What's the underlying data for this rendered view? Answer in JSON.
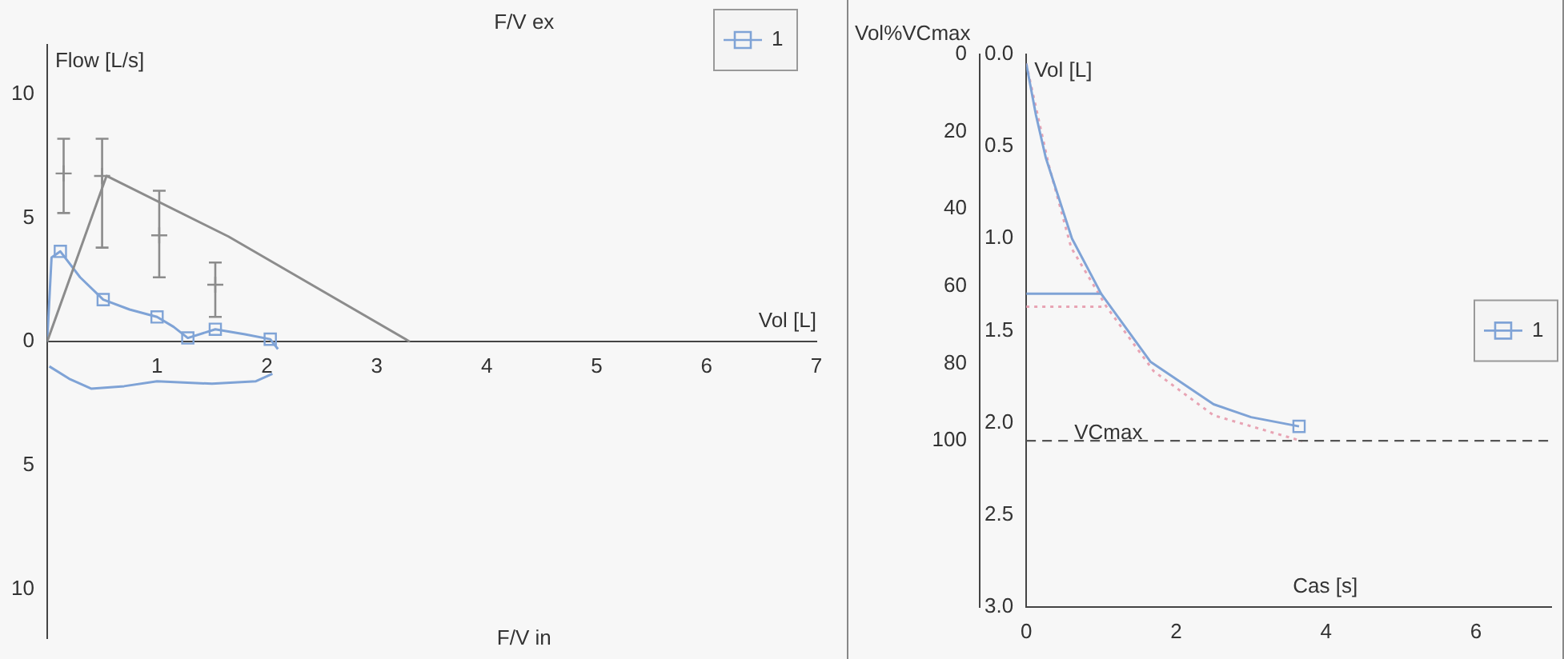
{
  "chart_data": [
    {
      "type": "line",
      "xlabel": "Vol [L]",
      "ylabel": "Flow [L/s]",
      "annotations": [
        "F/V ex",
        "F/V in"
      ],
      "xlim": [
        0,
        7
      ],
      "xticks": [
        1,
        2,
        3,
        4,
        5,
        6,
        7
      ],
      "ylim": [
        -12,
        12
      ],
      "yticks": [
        {
          "value": -10,
          "label": "10"
        },
        {
          "value": -5,
          "label": "5"
        },
        0,
        5,
        10
      ],
      "grid": false,
      "legend": "top right",
      "series": [
        {
          "color": "#8c8c8c",
          "marker": "none",
          "x": [
            0,
            0.54,
            1.65,
            3.3
          ],
          "values": [
            0,
            6.7,
            4.25,
            0
          ]
        },
        {
          "type": "scatter",
          "color": "#8c8c8c",
          "marker": "cross",
          "x": [
            0.15,
            0.5,
            1.02,
            1.53
          ],
          "values": [
            6.8,
            6.7,
            4.3,
            2.3
          ],
          "errors": [
            [
              5.2,
              8.2
            ],
            [
              3.8,
              8.2
            ],
            [
              2.6,
              6.1
            ],
            [
              1.0,
              3.2
            ]
          ]
        },
        {
          "name": "1",
          "color": "#7fa3d6",
          "marker": "none",
          "x": [
            0,
            0.04,
            0.12,
            0.3,
            0.51,
            0.75,
            1.0,
            1.15,
            1.28,
            1.53,
            1.8,
            2.03,
            2.1
          ],
          "values": [
            0,
            3.4,
            3.65,
            2.6,
            1.7,
            1.3,
            1.0,
            0.6,
            0.15,
            0.5,
            0.3,
            0.1,
            -0.3
          ]
        },
        {
          "color": "#7fa3d6",
          "marker": "none",
          "x": [
            0.02,
            0.2,
            0.4,
            0.7,
            1.0,
            1.5,
            1.9,
            2.05
          ],
          "values": [
            -1.0,
            -1.5,
            -1.9,
            -1.8,
            -1.6,
            -1.7,
            -1.6,
            -1.3
          ]
        },
        {
          "type": "scatter",
          "color": "#7fa3d6",
          "marker": "square",
          "x": [
            0.12,
            0.51,
            1.0,
            1.28,
            1.53,
            2.03
          ],
          "values": [
            3.65,
            1.7,
            1.0,
            0.15,
            0.5,
            0.1
          ]
        }
      ]
    },
    {
      "type": "line",
      "xlabel": "Cas [s]",
      "ylabel": "Vol [L]",
      "y2label": "Vol%VCmax",
      "xlim": [
        0,
        7
      ],
      "xticks": [
        0,
        2,
        4,
        6
      ],
      "ylim": [
        3,
        0
      ],
      "yticks": [
        {
          "value": 0,
          "label": "0.0"
        },
        0.5,
        {
          "value": 1,
          "label": "1.0"
        },
        1.5,
        {
          "value": 2,
          "label": "2.0"
        },
        2.5,
        {
          "value": 3,
          "label": "3.0"
        }
      ],
      "y2lim": [
        143,
        0
      ],
      "y2ticks": [
        0,
        20,
        40,
        60,
        80,
        100
      ],
      "grid": false,
      "legend": "right",
      "ref_lines": [
        {
          "axis": "y2",
          "value": 100,
          "label": "VCmax",
          "line_style": "dashed",
          "color": "#555555"
        }
      ],
      "series": [
        {
          "name": "1",
          "color": "#7fa3d6",
          "marker": "none",
          "x": [
            0,
            0.13,
            0.26,
            0.61,
            1.0,
            1.66,
            2.5,
            3.0,
            3.64
          ],
          "values": [
            0.05,
            0.33,
            0.56,
            1.0,
            1.3,
            1.67,
            1.9,
            1.97,
            2.02
          ]
        },
        {
          "color": "#7fa3d6",
          "marker": "none",
          "x": [
            0,
            1.0
          ],
          "values": [
            1.3,
            1.3
          ]
        },
        {
          "type": "scatter",
          "color": "#7fa3d6",
          "marker": "square",
          "x": [
            3.64
          ],
          "values": [
            2.02
          ]
        },
        {
          "color": "#e8a4b4",
          "marker": "none",
          "line_style": "dotted",
          "x": [
            0,
            0.3,
            0.6,
            1.07,
            1.7,
            2.5,
            3.68
          ],
          "values": [
            0.05,
            0.6,
            1.05,
            1.37,
            1.72,
            1.96,
            2.1
          ]
        },
        {
          "color": "#e8a4b4",
          "marker": "none",
          "line_style": "dotted",
          "x": [
            0,
            1.07
          ],
          "values": [
            1.37,
            1.37
          ]
        }
      ]
    }
  ]
}
